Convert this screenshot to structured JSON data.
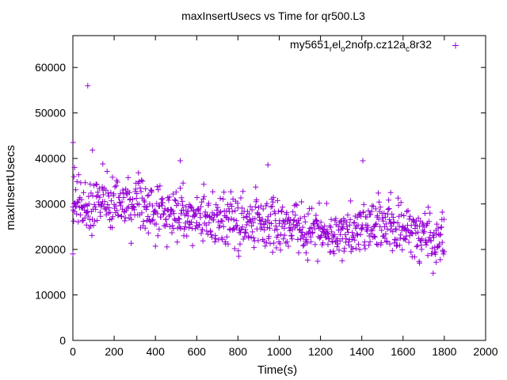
{
  "chart_data": {
    "type": "scatter",
    "title": "maxInsertUsecs vs Time for qr500.L3",
    "xlabel": "Time(s)",
    "ylabel": "maxInsertUsecs",
    "xlim": [
      0,
      2000
    ],
    "ylim": [
      0,
      67000
    ],
    "xticks": [
      0,
      200,
      400,
      600,
      800,
      1000,
      1200,
      1400,
      1600,
      1800,
      2000
    ],
    "yticks": [
      0,
      10000,
      20000,
      30000,
      40000,
      50000,
      60000
    ],
    "grid": false,
    "legend_position": "top-right",
    "series": [
      {
        "name": "my5651_rel_o2nofp.cz12a_c8r32",
        "legend_parts": [
          "my5651",
          "r",
          "el",
          "o",
          "2nofp.cz12a",
          "c",
          "8r32"
        ],
        "color": "#9400d3",
        "marker": "plus",
        "sample_interval_s": 2,
        "t_end_s": 1800,
        "trend": [
          [
            0,
            29000
          ],
          [
            100,
            30000
          ],
          [
            200,
            31000
          ],
          [
            300,
            29000
          ],
          [
            400,
            28500
          ],
          [
            500,
            28000
          ],
          [
            600,
            27500
          ],
          [
            700,
            26500
          ],
          [
            800,
            26000
          ],
          [
            900,
            26000
          ],
          [
            1000,
            25500
          ],
          [
            1100,
            25000
          ],
          [
            1200,
            24000
          ],
          [
            1300,
            23500
          ],
          [
            1400,
            24500
          ],
          [
            1500,
            25500
          ],
          [
            1600,
            24500
          ],
          [
            1700,
            23000
          ],
          [
            1800,
            21000
          ]
        ],
        "spread": 5500,
        "outliers": [
          [
            1,
            43500
          ],
          [
            5,
            36000
          ],
          [
            8,
            38000
          ],
          [
            72,
            56000
          ],
          [
            95,
            41800
          ],
          [
            145,
            38800
          ],
          [
            520,
            39500
          ],
          [
            945,
            38600
          ],
          [
            1405,
            39500
          ],
          [
            1540,
            32500
          ],
          [
            1790,
            28200
          ],
          [
            1760,
            17200
          ],
          [
            1680,
            17000
          ],
          [
            1305,
            17500
          ],
          [
            0,
            19000
          ]
        ]
      }
    ]
  }
}
